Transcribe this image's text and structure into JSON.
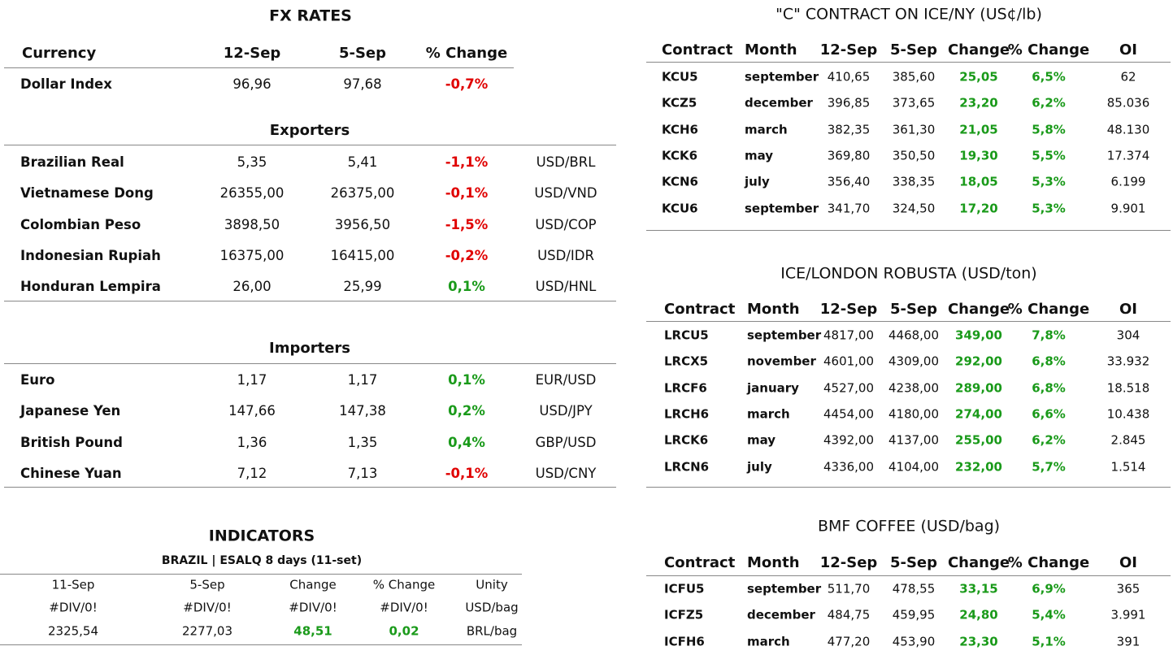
{
  "fx": {
    "title": "FX RATES",
    "header": [
      "Currency",
      "12-Sep",
      "5-Sep",
      "% Change"
    ],
    "dollar": [
      "Dollar Index",
      "96,96",
      "97,68",
      "-0,7%"
    ],
    "exporters": {
      "title": "Exporters",
      "rows": [
        [
          "Brazilian Real",
          "5,35",
          "5,41",
          "-1,1%",
          "USD/BRL"
        ],
        [
          "Vietnamese Dong",
          "26355,00",
          "26375,00",
          "-0,1%",
          "USD/VND"
        ],
        [
          "Colombian Peso",
          "3898,50",
          "3956,50",
          "-1,5%",
          "USD/COP"
        ],
        [
          "Indonesian Rupiah",
          "16375,00",
          "16415,00",
          "-0,2%",
          "USD/IDR"
        ],
        [
          "Honduran Lempira",
          "26,00",
          "25,99",
          "0,1%",
          "USD/HNL"
        ]
      ]
    },
    "importers": {
      "title": "Importers",
      "rows": [
        [
          "Euro",
          "1,17",
          "1,17",
          "0,1%",
          "EUR/USD"
        ],
        [
          "Japanese Yen",
          "147,66",
          "147,38",
          "0,2%",
          "USD/JPY"
        ],
        [
          "British Pound",
          "1,36",
          "1,35",
          "0,4%",
          "GBP/USD"
        ],
        [
          "Chinese Yuan",
          "7,12",
          "7,13",
          "-0,1%",
          "USD/CNY"
        ]
      ]
    }
  },
  "indicators": {
    "title": "INDICATORS",
    "subtitle": "BRAZIL | ESALQ 8 days (11-set)",
    "header": [
      "11-Sep",
      "5-Sep",
      "Change",
      "% Change",
      "Unity"
    ],
    "rows": [
      [
        "#DIV/0!",
        "#DIV/0!",
        "#DIV/0!",
        "#DIV/0!",
        "USD/bag"
      ],
      [
        "2325,54",
        "2277,03",
        "48,51",
        "0,02",
        "BRL/bag"
      ]
    ]
  },
  "futures": [
    {
      "title": "\"C\" CONTRACT ON ICE/NY (US¢/lb)",
      "header": [
        "Contract",
        "Month",
        "12-Sep",
        "5-Sep",
        "Change",
        "% Change",
        "OI"
      ],
      "rows": [
        [
          "KCU5",
          "september",
          "410,65",
          "385,60",
          "25,05",
          "6,5%",
          "62"
        ],
        [
          "KCZ5",
          "december",
          "396,85",
          "373,65",
          "23,20",
          "6,2%",
          "85.036"
        ],
        [
          "KCH6",
          "march",
          "382,35",
          "361,30",
          "21,05",
          "5,8%",
          "48.130"
        ],
        [
          "KCK6",
          "may",
          "369,80",
          "350,50",
          "19,30",
          "5,5%",
          "17.374"
        ],
        [
          "KCN6",
          "july",
          "356,40",
          "338,35",
          "18,05",
          "5,3%",
          "6.199"
        ],
        [
          "KCU6",
          "september",
          "341,70",
          "324,50",
          "17,20",
          "5,3%",
          "9.901"
        ]
      ]
    },
    {
      "title": "ICE/LONDON ROBUSTA (USD/ton)",
      "header": [
        "Contract",
        "Month",
        "12-Sep",
        "5-Sep",
        "Change",
        "% Change",
        "OI"
      ],
      "rows": [
        [
          "LRCU5",
          "september",
          "4817,00",
          "4468,00",
          "349,00",
          "7,8%",
          "304"
        ],
        [
          "LRCX5",
          "november",
          "4601,00",
          "4309,00",
          "292,00",
          "6,8%",
          "33.932"
        ],
        [
          "LRCF6",
          "january",
          "4527,00",
          "4238,00",
          "289,00",
          "6,8%",
          "18.518"
        ],
        [
          "LRCH6",
          "march",
          "4454,00",
          "4180,00",
          "274,00",
          "6,6%",
          "10.438"
        ],
        [
          "LRCK6",
          "may",
          "4392,00",
          "4137,00",
          "255,00",
          "6,2%",
          "2.845"
        ],
        [
          "LRCN6",
          "july",
          "4336,00",
          "4104,00",
          "232,00",
          "5,7%",
          "1.514"
        ]
      ]
    },
    {
      "title": "BMF COFFEE (USD/bag)",
      "header": [
        "Contract",
        "Month",
        "12-Sep",
        "5-Sep",
        "Change",
        "% Change",
        "OI"
      ],
      "rows": [
        [
          "ICFU5",
          "september",
          "511,70",
          "478,55",
          "33,15",
          "6,9%",
          "365"
        ],
        [
          "ICFZ5",
          "december",
          "484,75",
          "459,95",
          "24,80",
          "5,4%",
          "3.991"
        ],
        [
          "ICFH6",
          "march",
          "477,20",
          "453,90",
          "23,30",
          "5,1%",
          "391"
        ]
      ]
    }
  ]
}
